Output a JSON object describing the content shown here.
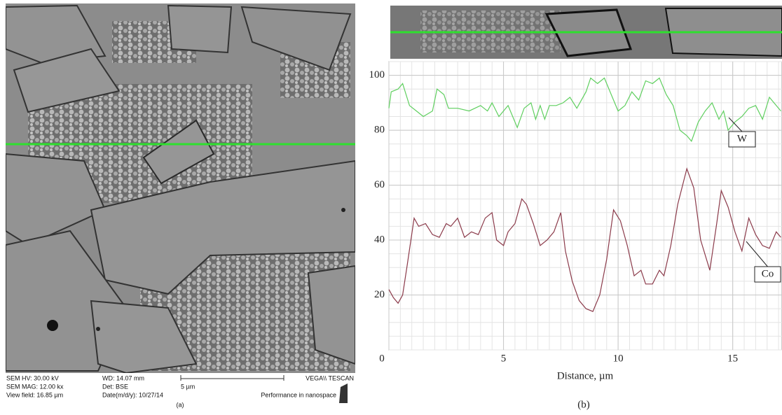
{
  "sem_image": {
    "info": [
      "SEM HV: 30.00 kV",
      "WD: 14.07 mm",
      "VEGA\\\\ TESCAN",
      "SEM MAG: 12.00 kx",
      "Det: BSE",
      "5 µm",
      "View field: 16.85 µm",
      "Date(m/d/y): 10/27/14",
      "Performance in nanospace"
    ],
    "caption": "(a)"
  },
  "chart_data": {
    "type": "line",
    "caption": "(b)",
    "x_label": "Distance, µm",
    "xlim": [
      0,
      17.15
    ],
    "ylim": [
      0,
      105
    ],
    "xticks": [
      0,
      5,
      10,
      15
    ],
    "yticks": [
      20,
      40,
      60,
      80,
      100
    ],
    "grid": true,
    "series": [
      {
        "name": "W",
        "color": "#5fcf5f",
        "x": [
          0,
          0.1,
          0.4,
          0.6,
          0.9,
          1.2,
          1.5,
          1.9,
          2.1,
          2.4,
          2.6,
          3,
          3.5,
          4,
          4.3,
          4.5,
          4.8,
          5.2,
          5.6,
          5.9,
          6.2,
          6.4,
          6.6,
          6.8,
          7,
          7.3,
          7.6,
          7.9,
          8.2,
          8.6,
          8.8,
          9.1,
          9.4,
          9.7,
          10,
          10.3,
          10.6,
          10.9,
          11.2,
          11.5,
          11.8,
          12.1,
          12.4,
          12.7,
          13,
          13.2,
          13.5,
          13.8,
          14.1,
          14.4,
          14.6,
          14.8,
          15.1,
          15.4,
          15.7,
          16,
          16.3,
          16.6,
          16.9,
          17.1
        ],
        "values": [
          88,
          94,
          95,
          97,
          89,
          87,
          85,
          87,
          95,
          93,
          88,
          88,
          87,
          89,
          87,
          90,
          85,
          89,
          81,
          88,
          90,
          84,
          89,
          84,
          89,
          89,
          90,
          92,
          88,
          94,
          99,
          97,
          99,
          93,
          87,
          89,
          94,
          91,
          98,
          97,
          99,
          93,
          89,
          80,
          78,
          76,
          83,
          87,
          90,
          84,
          87,
          80,
          83,
          85,
          88,
          89,
          84,
          92,
          89,
          87
        ]
      },
      {
        "name": "Co",
        "color": "#8b3a4a",
        "x": [
          0,
          0.2,
          0.4,
          0.6,
          0.8,
          1.1,
          1.3,
          1.6,
          1.9,
          2.2,
          2.5,
          2.7,
          3,
          3.3,
          3.6,
          3.9,
          4.2,
          4.5,
          4.7,
          5,
          5.2,
          5.5,
          5.8,
          6,
          6.3,
          6.6,
          6.9,
          7.2,
          7.5,
          7.7,
          8,
          8.3,
          8.6,
          8.9,
          9.2,
          9.5,
          9.8,
          10.1,
          10.4,
          10.7,
          11,
          11.2,
          11.5,
          11.8,
          12,
          12.3,
          12.6,
          13,
          13.3,
          13.6,
          14,
          14.3,
          14.5,
          14.8,
          15.1,
          15.4,
          15.7,
          16,
          16.3,
          16.6,
          16.9,
          17.1
        ],
        "values": [
          22,
          19,
          17,
          20,
          31,
          48,
          45,
          46,
          42,
          41,
          46,
          45,
          48,
          41,
          43,
          42,
          48,
          50,
          40,
          38,
          43,
          46,
          55,
          53,
          46,
          38,
          40,
          43,
          50,
          36,
          25,
          18,
          15,
          14,
          20,
          33,
          51,
          47,
          38,
          27,
          29,
          24,
          24,
          29,
          27,
          38,
          53,
          66,
          59,
          40,
          29,
          46,
          58,
          52,
          43,
          36,
          48,
          42,
          38,
          37,
          43,
          41
        ]
      }
    ]
  }
}
